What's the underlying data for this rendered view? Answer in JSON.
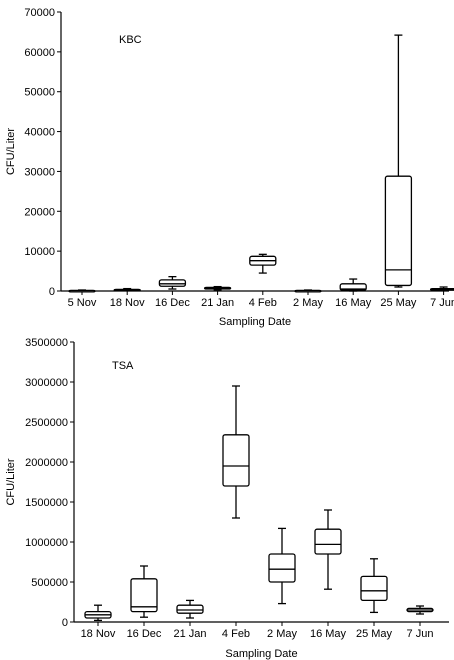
{
  "chart_data": [
    {
      "type": "box",
      "panel_label": "KBC",
      "xlabel": "Sampling Date",
      "ylabel": "CFU/Liter",
      "ylim": [
        0,
        70000
      ],
      "yticks": [
        0,
        10000,
        20000,
        30000,
        40000,
        50000,
        60000,
        70000
      ],
      "ytick_labels": [
        "0",
        "10000",
        "20000",
        "30000",
        "40000",
        "50000",
        "60000",
        "70000"
      ],
      "categories": [
        "5 Nov",
        "18 Nov",
        "16 Dec",
        "21 Jan",
        "4 Feb",
        "2 May",
        "16 May",
        "25 May",
        "7 Jun"
      ],
      "boxes": [
        {
          "min": 0,
          "q1": 50,
          "median": 100,
          "q3": 150,
          "max": 250
        },
        {
          "min": 100,
          "q1": 200,
          "median": 300,
          "q3": 400,
          "max": 600
        },
        {
          "min": 500,
          "q1": 1200,
          "median": 1800,
          "q3": 2800,
          "max": 3600
        },
        {
          "min": 300,
          "q1": 500,
          "median": 700,
          "q3": 900,
          "max": 1100
        },
        {
          "min": 4500,
          "q1": 6500,
          "median": 7600,
          "q3": 8700,
          "max": 9200
        },
        {
          "min": 0,
          "q1": 50,
          "median": 100,
          "q3": 150,
          "max": 250
        },
        {
          "min": 0,
          "q1": 200,
          "median": 500,
          "q3": 1800,
          "max": 3000
        },
        {
          "min": 1000,
          "q1": 1400,
          "median": 5300,
          "q3": 28800,
          "max": 64200
        },
        {
          "min": 100,
          "q1": 200,
          "median": 350,
          "q3": 600,
          "max": 1000
        }
      ]
    },
    {
      "type": "box",
      "panel_label": "TSA",
      "xlabel": "Sampling Date",
      "ylabel": "CFU/Liter",
      "ylim": [
        0,
        3500000
      ],
      "yticks": [
        0,
        500000,
        1000000,
        1500000,
        2000000,
        2500000,
        3000000,
        3500000
      ],
      "ytick_labels": [
        "0",
        "500000",
        "1000000",
        "1500000",
        "2000000",
        "2500000",
        "3000000",
        "3500000"
      ],
      "categories": [
        "18 Nov",
        "16 Dec",
        "21 Jan",
        "4 Feb",
        "2 May",
        "16 May",
        "25 May",
        "7 Jun"
      ],
      "boxes": [
        {
          "min": 20000,
          "q1": 50000,
          "median": 90000,
          "q3": 130000,
          "max": 210000
        },
        {
          "min": 60000,
          "q1": 130000,
          "median": 190000,
          "q3": 540000,
          "max": 700000
        },
        {
          "min": 50000,
          "q1": 110000,
          "median": 150000,
          "q3": 210000,
          "max": 270000
        },
        {
          "min": 1300000,
          "q1": 1700000,
          "median": 1950000,
          "q3": 2340000,
          "max": 2950000
        },
        {
          "min": 230000,
          "q1": 500000,
          "median": 660000,
          "q3": 850000,
          "max": 1170000
        },
        {
          "min": 410000,
          "q1": 850000,
          "median": 970000,
          "q3": 1160000,
          "max": 1400000
        },
        {
          "min": 120000,
          "q1": 270000,
          "median": 390000,
          "q3": 570000,
          "max": 790000
        },
        {
          "min": 100000,
          "q1": 130000,
          "median": 150000,
          "q3": 170000,
          "max": 200000
        }
      ]
    }
  ]
}
